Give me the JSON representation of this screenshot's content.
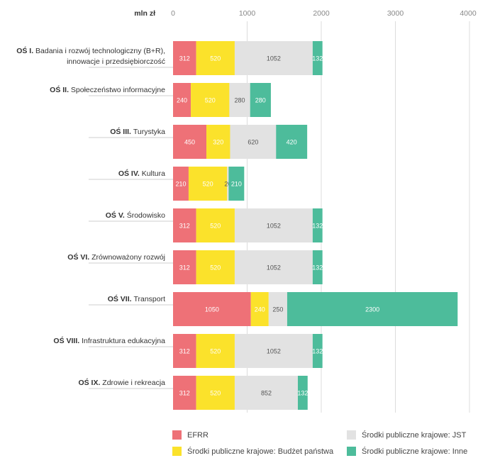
{
  "chart_data": {
    "type": "bar",
    "orientation": "horizontal",
    "stacked": true,
    "title": "",
    "xlabel": "mln zł",
    "ylabel": "",
    "xlim": [
      0,
      4000
    ],
    "xticks": [
      "0",
      "1000",
      "2000",
      "3000",
      "4000"
    ],
    "grid": true,
    "legend_position": "bottom",
    "categories": [
      {
        "bold": "OŚ I.",
        "text": "Badania i rozwój technologiczny (B+R),",
        "text2": "innowacje i przedsiębiorczość"
      },
      {
        "bold": "OŚ II.",
        "text": "Społeczeństwo informacyjne"
      },
      {
        "bold": "OŚ III.",
        "text": "Turystyka"
      },
      {
        "bold": "OŚ IV.",
        "text": "Kultura"
      },
      {
        "bold": "OŚ V.",
        "text": "Środowisko"
      },
      {
        "bold": "OŚ VI.",
        "text": "Zrównoważony rozwój"
      },
      {
        "bold": "OŚ VII.",
        "text": "Transport"
      },
      {
        "bold": "OŚ VIII.",
        "text": "Infrastruktura edukacyjna"
      },
      {
        "bold": "OŚ IX.",
        "text": "Zdrowie i rekreacja"
      }
    ],
    "series": [
      {
        "name": "EFRR",
        "color": "#ee7177",
        "values": [
          312,
          240,
          450,
          210,
          312,
          312,
          1050,
          312,
          312
        ]
      },
      {
        "name": "Środki publiczne krajowe: Budżet państwa",
        "color": "#fbe22b",
        "values": [
          520,
          520,
          320,
          520,
          520,
          520,
          240,
          520,
          520
        ]
      },
      {
        "name": "Środki publiczne krajowe: JST",
        "color": "#e2e2e2",
        "values": [
          1052,
          280,
          620,
          20,
          1052,
          1052,
          250,
          1052,
          852
        ]
      },
      {
        "name": "Środki publiczne krajowe: Inne",
        "color": "#4dbc9b",
        "values": [
          132,
          280,
          420,
          210,
          132,
          132,
          2300,
          132,
          132
        ]
      }
    ]
  }
}
